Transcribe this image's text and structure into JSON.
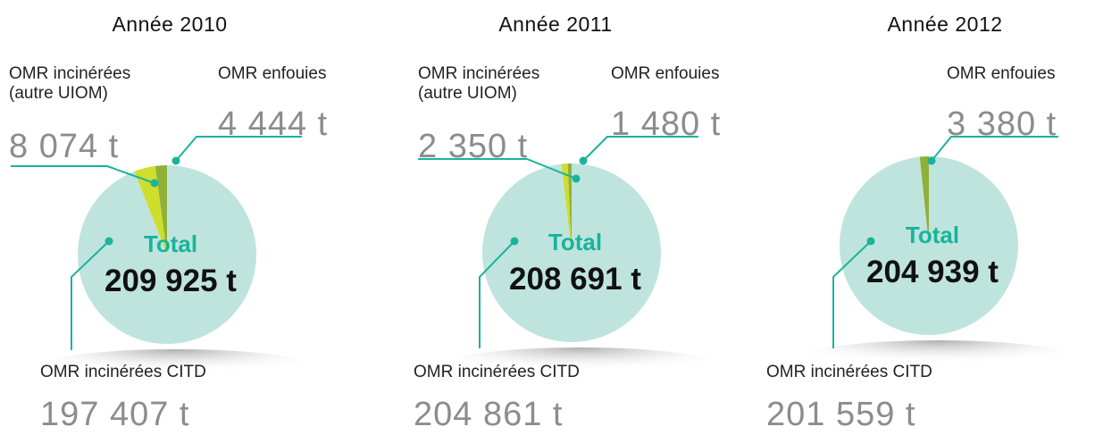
{
  "chart_data": [
    {
      "type": "pie",
      "title": "Année 2010",
      "categories": [
        "OMR enfouies",
        "OMR incinérées (autre UIOM)",
        "OMR incinérées CITD"
      ],
      "values": [
        4444,
        8074,
        197407
      ],
      "value_labels": [
        "4 444 t",
        "8 074 t",
        "197 407 t"
      ],
      "colors": [
        "#8fb13a",
        "#cfdd2c",
        "#bfe4de"
      ],
      "total_label": "Total",
      "total": 209925,
      "total_value_label": "209 925 t"
    },
    {
      "type": "pie",
      "title": "Année 2011",
      "categories": [
        "OMR enfouies",
        "OMR incinérées (autre UIOM)",
        "OMR incinérées CITD"
      ],
      "values": [
        1480,
        2350,
        204861
      ],
      "value_labels": [
        "1 480 t",
        "2 350 t",
        "204 861 t"
      ],
      "colors": [
        "#8fb13a",
        "#cfdd2c",
        "#bfe4de"
      ],
      "total_label": "Total",
      "total": 208691,
      "total_value_label": "208 691 t"
    },
    {
      "type": "pie",
      "title": "Année 2012",
      "categories": [
        "OMR enfouies",
        "OMR incinérées CITD"
      ],
      "values": [
        3380,
        201559
      ],
      "value_labels": [
        "3 380 t",
        "201 559 t"
      ],
      "colors": [
        "#8fb13a",
        "#bfe4de"
      ],
      "total_label": "Total",
      "total": 204939,
      "total_value_label": "204 939 t"
    }
  ]
}
